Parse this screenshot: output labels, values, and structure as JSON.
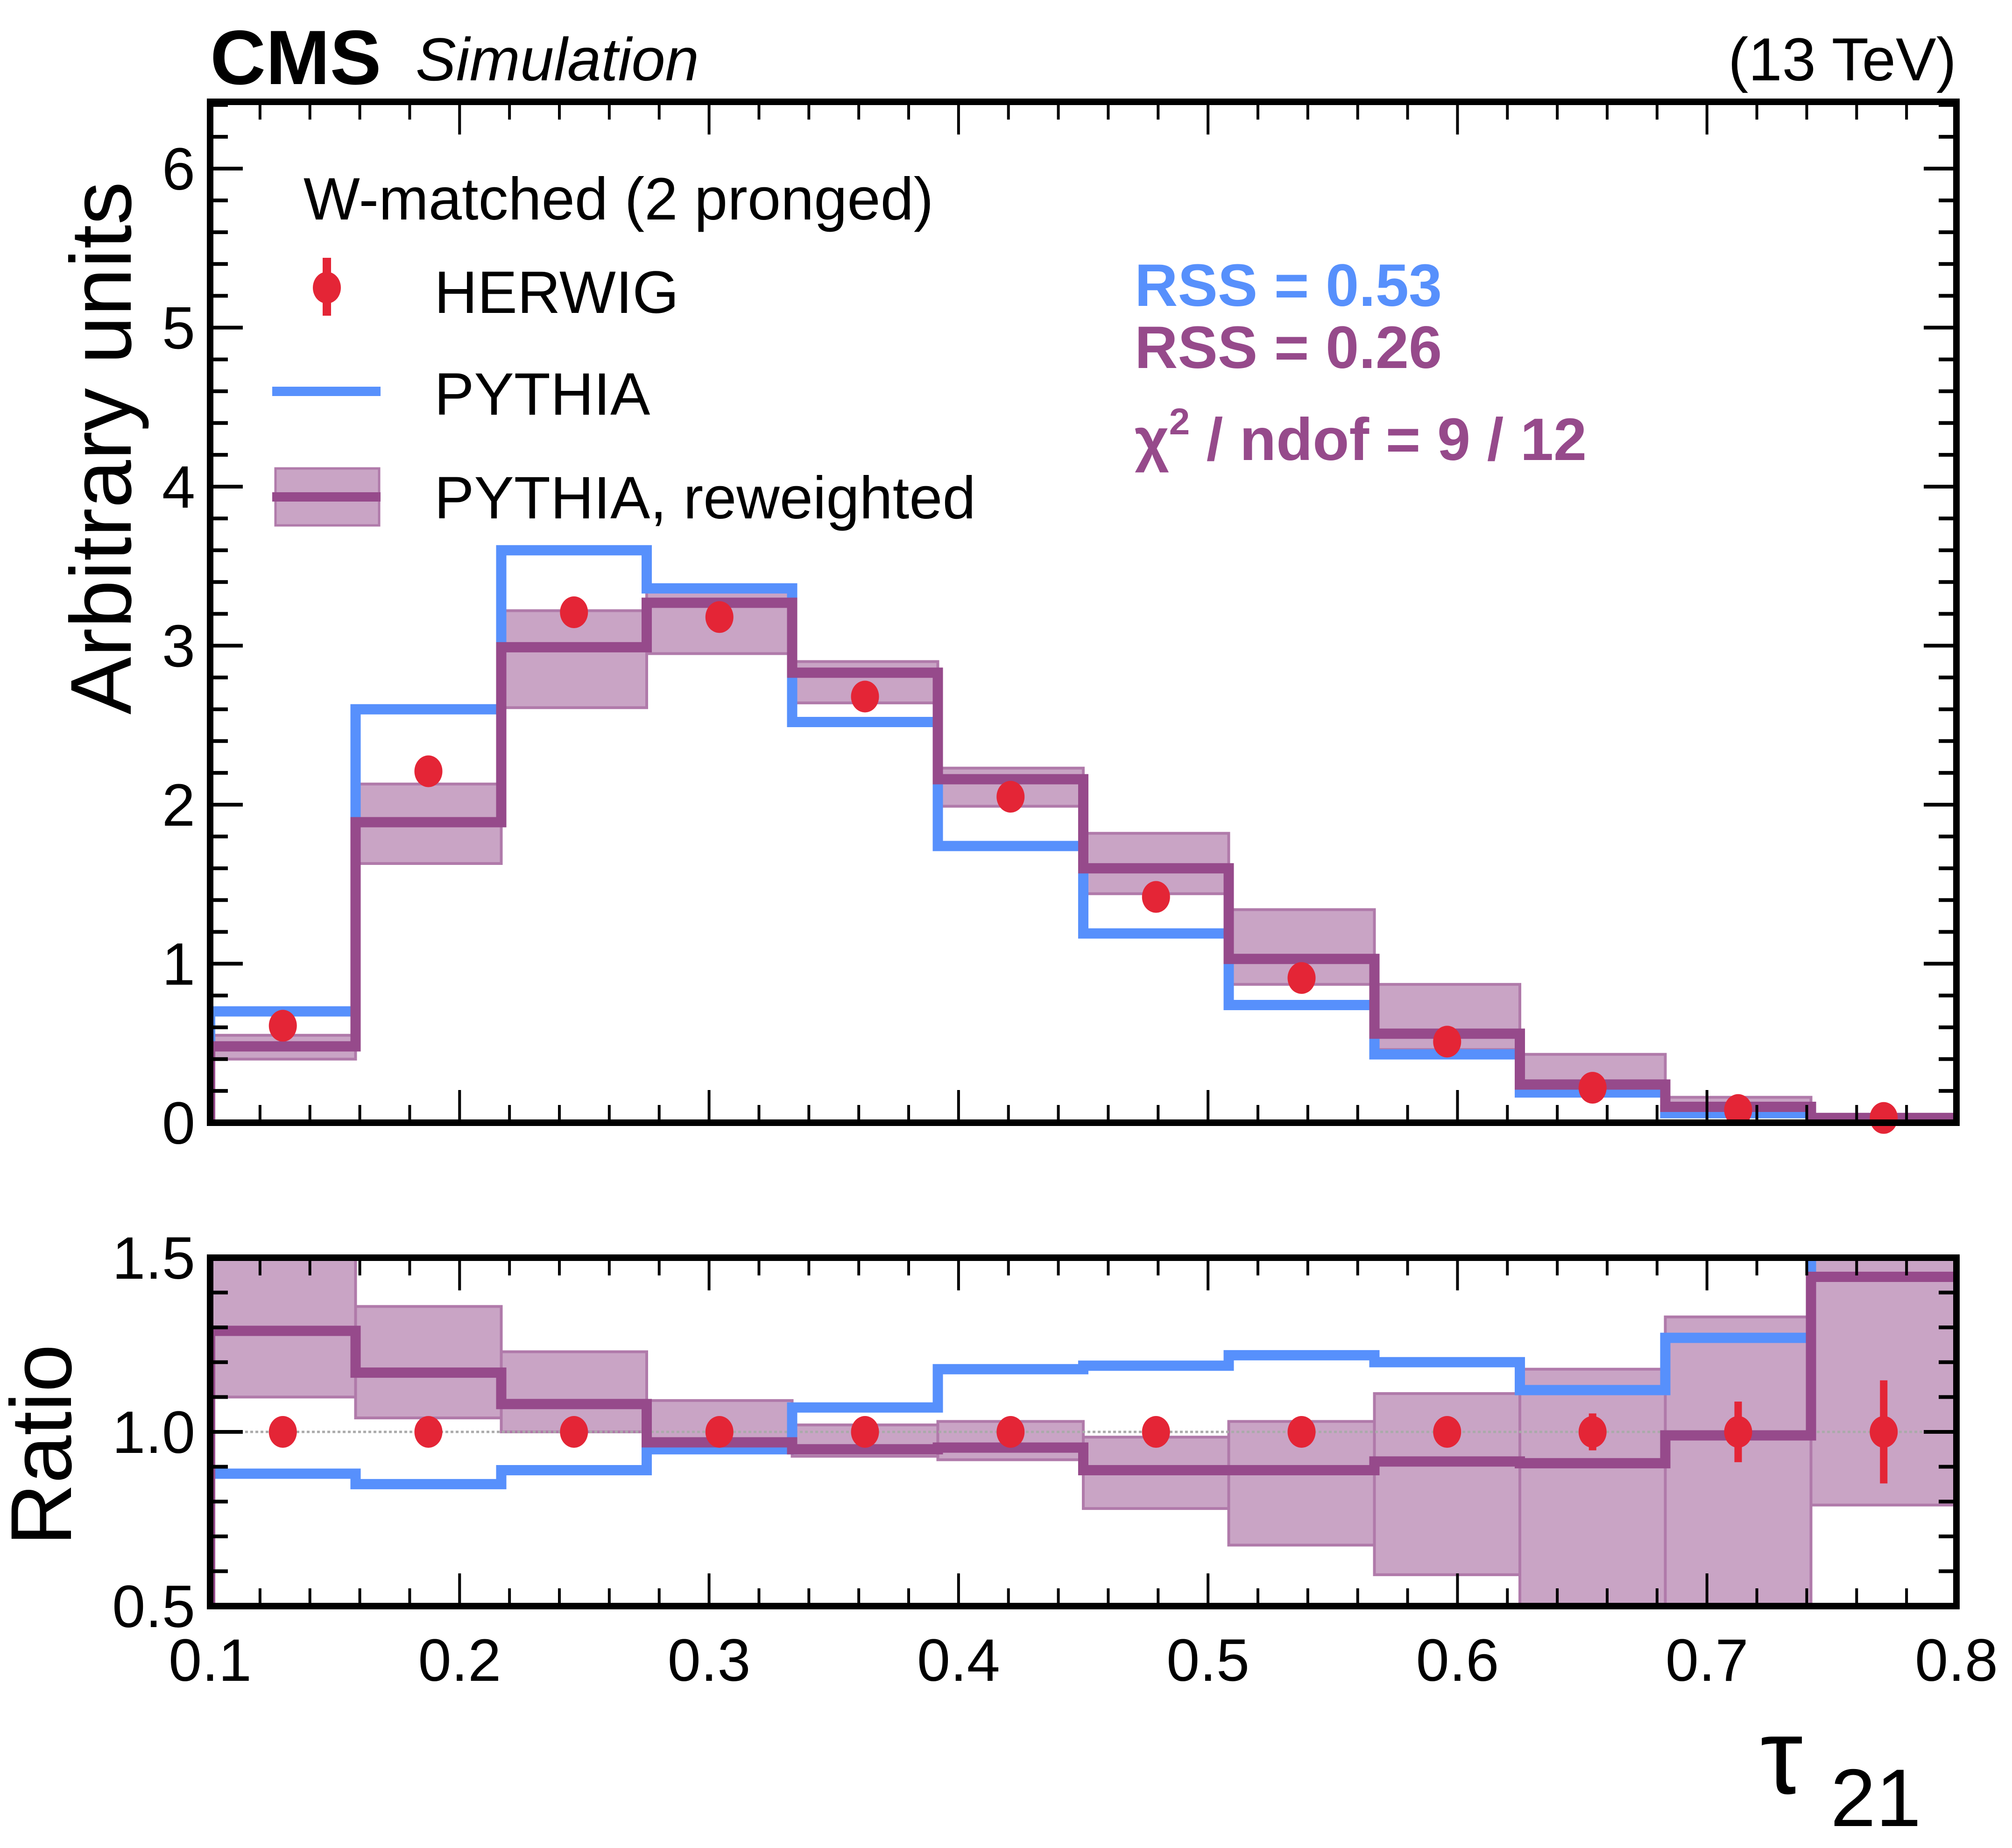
{
  "header": {
    "experiment": "CMS",
    "tag": "Simulation",
    "energy": "(13 TeV)"
  },
  "colors": {
    "herwig": "#E42536",
    "pythia": "#5790FC",
    "reweighted": "#964A8B",
    "band": "#C9A4C5",
    "band_edge": "#B07AAA",
    "axis": "#000000",
    "ref_line": "#AAAAAA"
  },
  "legend": {
    "title": "W-matched (2 pronged)",
    "entries": [
      {
        "key": "herwig",
        "label": "HERWIG",
        "style": "marker-errorbar"
      },
      {
        "key": "pythia",
        "label": "PYTHIA",
        "style": "line"
      },
      {
        "key": "reweighted",
        "label": "PYTHIA, reweighted",
        "style": "line-band"
      }
    ]
  },
  "stats": {
    "rss_pythia": "RSS = 0.53",
    "rss_reweighted": "RSS = 0.26",
    "chi2_prefix": "χ",
    "chi2_sup": "2",
    "chi2_rest": " / ndof = 9 / 12"
  },
  "chart_data": [
    {
      "type": "histogram",
      "panel": "main",
      "ylabel": "Arbitrary units",
      "xlabel": "",
      "xlim": [
        0.1,
        0.8
      ],
      "ylim": [
        0,
        6.42
      ],
      "yticks": [
        0,
        1,
        2,
        3,
        4,
        5,
        6
      ],
      "ytick_labels": [
        "0",
        "1",
        "2",
        "3",
        "4",
        "5",
        "6"
      ],
      "y_minor_step": 0.2,
      "bin_edges": [
        0.1,
        0.1583,
        0.2167,
        0.275,
        0.3333,
        0.3917,
        0.45,
        0.5083,
        0.5667,
        0.625,
        0.6833,
        0.7417,
        0.8
      ],
      "series": [
        {
          "name": "PYTHIA",
          "key": "pythia",
          "kind": "step",
          "values": [
            0.7,
            2.6,
            3.6,
            3.36,
            2.52,
            1.74,
            1.19,
            0.74,
            0.43,
            0.19,
            0.06,
            0.02
          ]
        },
        {
          "name": "PYTHIA, reweighted",
          "key": "reweighted",
          "kind": "step-band",
          "values": [
            0.48,
            1.89,
            2.99,
            3.27,
            2.83,
            2.16,
            1.6,
            1.03,
            0.56,
            0.24,
            0.1,
            0.03
          ],
          "band_low": [
            0.4,
            1.63,
            2.61,
            2.95,
            2.64,
            1.99,
            1.44,
            0.87,
            0.46,
            0.19,
            0.07,
            0.02
          ],
          "band_high": [
            0.55,
            2.13,
            3.22,
            3.38,
            2.9,
            2.23,
            1.82,
            1.34,
            0.87,
            0.43,
            0.16,
            0.05
          ]
        },
        {
          "name": "HERWIG",
          "key": "herwig",
          "kind": "points",
          "values": [
            0.61,
            2.21,
            3.21,
            3.18,
            2.68,
            2.05,
            1.42,
            0.91,
            0.51,
            0.22,
            0.08,
            0.03
          ],
          "errors": [
            0.0,
            0.0,
            0.0,
            0.0,
            0.0,
            0.0,
            0.0,
            0.0,
            0.0,
            0.01,
            0.01,
            0.005
          ]
        }
      ]
    },
    {
      "type": "histogram",
      "panel": "ratio",
      "ylabel": "Ratio",
      "xlabel": "τ21",
      "xlabel_main": "τ",
      "xlabel_sub": "21",
      "xlim": [
        0.1,
        0.8
      ],
      "ylim": [
        0.5,
        1.5
      ],
      "yticks": [
        0.5,
        1.0,
        1.5
      ],
      "ytick_labels": [
        "0.5",
        "1.0",
        "1.5"
      ],
      "y_minor_step": 0.1,
      "xticks": [
        0.1,
        0.2,
        0.3,
        0.4,
        0.5,
        0.6,
        0.7,
        0.8
      ],
      "xtick_labels": [
        "0.1",
        "0.2",
        "0.3",
        "0.4",
        "0.5",
        "0.6",
        "0.7",
        "0.8"
      ],
      "x_minor_step": 0.02,
      "reference_line": 1.0,
      "bin_edges": [
        0.1,
        0.1583,
        0.2167,
        0.275,
        0.3333,
        0.3917,
        0.45,
        0.5083,
        0.5667,
        0.625,
        0.6833,
        0.7417,
        0.8
      ],
      "series": [
        {
          "name": "PYTHIA",
          "key": "pythia",
          "kind": "step",
          "values": [
            0.88,
            0.85,
            0.89,
            0.95,
            1.07,
            1.18,
            1.19,
            1.22,
            1.2,
            1.12,
            1.27,
            1.6
          ]
        },
        {
          "name": "PYTHIA, reweighted",
          "key": "reweighted",
          "kind": "step-band",
          "values": [
            1.29,
            1.17,
            1.08,
            0.97,
            0.95,
            0.955,
            0.89,
            0.89,
            0.915,
            0.91,
            0.99,
            1.445
          ],
          "band_low": [
            1.1,
            1.04,
            1.0,
            0.95,
            0.93,
            0.92,
            0.78,
            0.675,
            0.59,
            0.45,
            0.45,
            0.79
          ],
          "band_high": [
            1.6,
            1.36,
            1.23,
            1.09,
            1.02,
            1.03,
            0.985,
            1.03,
            1.11,
            1.18,
            1.33,
            1.6
          ]
        },
        {
          "name": "HERWIG",
          "key": "herwig",
          "kind": "points",
          "values": [
            1.0,
            1.0,
            1.0,
            1.0,
            1.0,
            1.0,
            1.0,
            1.0,
            1.0,
            1.0,
            1.0,
            1.0
          ],
          "errors": [
            0.0,
            0.0,
            0.0,
            0.0,
            0.0,
            0.0,
            0.0,
            0.0,
            0.0,
            0.053,
            0.087,
            0.148
          ]
        }
      ]
    }
  ]
}
